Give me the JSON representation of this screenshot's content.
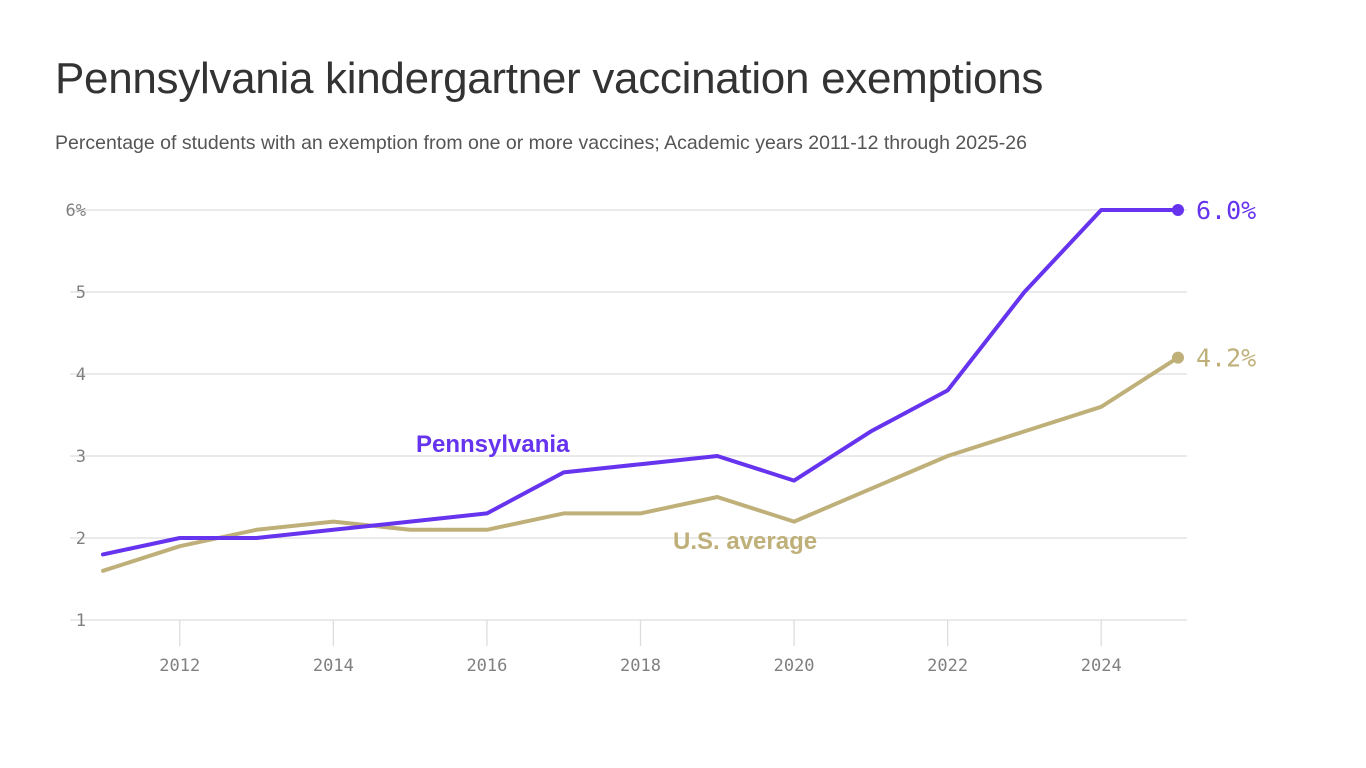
{
  "title": "Pennsylvania kindergartner vaccination exemptions",
  "subtitle": "Percentage of students with an exemption from one or more vaccines; Academic years 2011-12 through 2025-26",
  "colors": {
    "pennsylvania": "#6633ee",
    "us_average": "#bfb07a",
    "grid": "#dddddd",
    "axis_text": "#808080"
  },
  "chart_data": {
    "type": "line",
    "x": [
      2011,
      2012,
      2013,
      2014,
      2015,
      2016,
      2017,
      2018,
      2019,
      2020,
      2021,
      2022,
      2023,
      2024,
      2025
    ],
    "series": [
      {
        "key": "pennsylvania",
        "name": "Pennsylvania",
        "values": [
          1.8,
          2.0,
          2.0,
          2.1,
          2.2,
          2.3,
          2.8,
          2.9,
          3.0,
          2.7,
          3.3,
          3.8,
          5.0,
          6.0,
          6.0
        ],
        "end_label": "6.0%"
      },
      {
        "key": "us_average",
        "name": "U.S. average",
        "values": [
          1.6,
          1.9,
          2.1,
          2.2,
          2.1,
          2.1,
          2.3,
          2.3,
          2.5,
          2.2,
          2.6,
          3.0,
          3.3,
          3.6,
          4.2
        ],
        "end_label": "4.2%"
      }
    ],
    "y_ticks": [
      {
        "value": 1,
        "label": "1"
      },
      {
        "value": 2,
        "label": "2"
      },
      {
        "value": 3,
        "label": "3"
      },
      {
        "value": 4,
        "label": "4"
      },
      {
        "value": 5,
        "label": "5"
      },
      {
        "value": 6,
        "label": "6%"
      }
    ],
    "x_ticks": [
      {
        "value": 2012,
        "label": "2012"
      },
      {
        "value": 2014,
        "label": "2014"
      },
      {
        "value": 2016,
        "label": "2016"
      },
      {
        "value": 2018,
        "label": "2018"
      },
      {
        "value": 2020,
        "label": "2020"
      },
      {
        "value": 2022,
        "label": "2022"
      },
      {
        "value": 2024,
        "label": "2024"
      }
    ],
    "xlim": [
      2011,
      2025
    ],
    "ylim": [
      1,
      6
    ],
    "grid": true
  }
}
